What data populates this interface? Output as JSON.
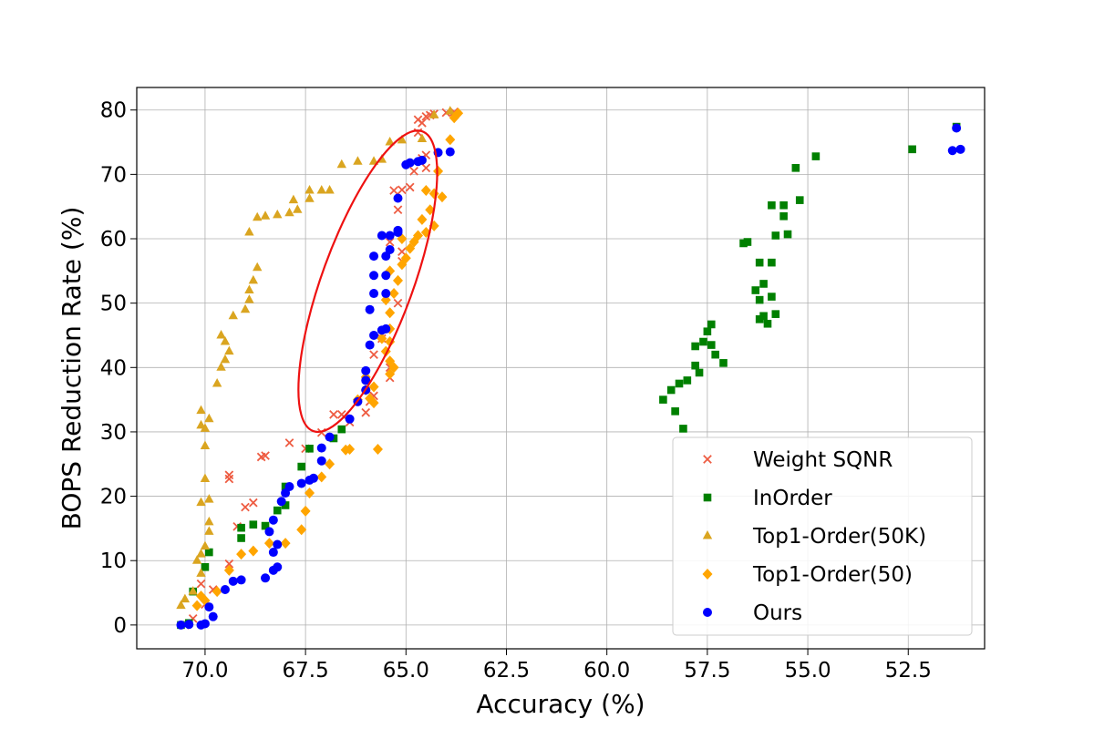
{
  "chart_data": {
    "type": "scatter",
    "title": "",
    "xlabel": "Accuracy (%)",
    "ylabel": "BOPS Reduction Rate (%)",
    "xlim": [
      71.7,
      50.6
    ],
    "ylim": [
      -3.7,
      83.5
    ],
    "x_inverted": true,
    "grid": true,
    "legend_position": "lower-right",
    "xticks": [
      70.0,
      67.5,
      65.0,
      62.5,
      60.0,
      57.5,
      55.0,
      52.5
    ],
    "xtick_labels": [
      "70.0",
      "67.5",
      "65.0",
      "62.5",
      "60.0",
      "57.5",
      "55.0",
      "52.5"
    ],
    "yticks": [
      0,
      10,
      20,
      30,
      40,
      50,
      60,
      70,
      80
    ],
    "ytick_labels": [
      "0",
      "10",
      "20",
      "30",
      "40",
      "50",
      "60",
      "70",
      "80"
    ],
    "annotation": {
      "type": "ellipse",
      "center": [
        65.95,
        53.4
      ],
      "color": "#ee1111"
    },
    "series": [
      {
        "name": "Weight SQNR",
        "marker": "x",
        "color": "#ee5c42",
        "points": [
          [
            70.5,
            0.0
          ],
          [
            70.3,
            1.0
          ],
          [
            70.0,
            3.2
          ],
          [
            70.1,
            6.4
          ],
          [
            69.8,
            5.5
          ],
          [
            69.4,
            9.5
          ],
          [
            69.2,
            15.3
          ],
          [
            68.8,
            19.0
          ],
          [
            69.0,
            18.3
          ],
          [
            69.4,
            22.7
          ],
          [
            69.4,
            23.3
          ],
          [
            68.6,
            26.1
          ],
          [
            68.5,
            26.3
          ],
          [
            67.9,
            28.3
          ],
          [
            67.5,
            27.4
          ],
          [
            67.1,
            29.9
          ],
          [
            66.8,
            32.7
          ],
          [
            66.6,
            32.7
          ],
          [
            66.4,
            31.5
          ],
          [
            66.0,
            33.0
          ],
          [
            65.8,
            35.6
          ],
          [
            65.9,
            34.7
          ],
          [
            65.8,
            42.0
          ],
          [
            65.6,
            44.5
          ],
          [
            65.4,
            38.4
          ],
          [
            65.4,
            40.0
          ],
          [
            65.2,
            50.0
          ],
          [
            65.4,
            59.5
          ],
          [
            65.1,
            56.5
          ],
          [
            65.1,
            58.0
          ],
          [
            65.2,
            64.5
          ],
          [
            65.3,
            67.5
          ],
          [
            65.1,
            67.6
          ],
          [
            64.9,
            68.0
          ],
          [
            64.8,
            70.5
          ],
          [
            64.5,
            71.0
          ],
          [
            64.6,
            72.5
          ],
          [
            64.5,
            73.0
          ],
          [
            64.7,
            76.5
          ],
          [
            64.6,
            78.0
          ],
          [
            64.7,
            78.5
          ],
          [
            64.5,
            79.0
          ],
          [
            64.4,
            79.2
          ],
          [
            64.3,
            79.4
          ],
          [
            64.0,
            79.6
          ],
          [
            63.8,
            79.7
          ]
        ]
      },
      {
        "name": "InOrder",
        "marker": "square",
        "color": "#008000",
        "points": [
          [
            70.6,
            0.0
          ],
          [
            70.4,
            0.3
          ],
          [
            70.3,
            5.2
          ],
          [
            70.0,
            9.0
          ],
          [
            69.9,
            11.3
          ],
          [
            69.1,
            13.5
          ],
          [
            69.1,
            15.1
          ],
          [
            68.8,
            15.6
          ],
          [
            68.5,
            15.4
          ],
          [
            68.2,
            17.8
          ],
          [
            68.0,
            18.6
          ],
          [
            68.0,
            21.5
          ],
          [
            67.6,
            24.6
          ],
          [
            67.4,
            27.4
          ],
          [
            66.8,
            29.0
          ],
          [
            66.6,
            30.4
          ],
          [
            58.6,
            35.0
          ],
          [
            58.4,
            36.5
          ],
          [
            58.2,
            37.5
          ],
          [
            58.0,
            38.0
          ],
          [
            57.8,
            40.3
          ],
          [
            57.7,
            39.2
          ],
          [
            57.8,
            43.3
          ],
          [
            57.6,
            44.0
          ],
          [
            57.5,
            45.6
          ],
          [
            57.4,
            46.7
          ],
          [
            57.4,
            43.5
          ],
          [
            57.3,
            42.0
          ],
          [
            57.1,
            40.7
          ],
          [
            58.3,
            33.2
          ],
          [
            58.1,
            30.5
          ],
          [
            56.6,
            59.3
          ],
          [
            56.5,
            59.5
          ],
          [
            56.3,
            52.0
          ],
          [
            56.2,
            50.5
          ],
          [
            56.1,
            48.0
          ],
          [
            56.2,
            47.5
          ],
          [
            56.0,
            46.8
          ],
          [
            55.8,
            48.3
          ],
          [
            55.9,
            51.0
          ],
          [
            56.1,
            53.0
          ],
          [
            56.2,
            56.3
          ],
          [
            55.9,
            56.3
          ],
          [
            55.8,
            60.5
          ],
          [
            55.5,
            60.7
          ],
          [
            55.6,
            63.5
          ],
          [
            55.6,
            65.2
          ],
          [
            55.9,
            65.2
          ],
          [
            55.2,
            66.0
          ],
          [
            55.3,
            71.0
          ],
          [
            54.8,
            72.8
          ],
          [
            52.4,
            73.9
          ],
          [
            51.3,
            77.4
          ]
        ]
      },
      {
        "name": "Top1-Order(50K)",
        "marker": "triangle",
        "color": "#daa520",
        "points": [
          [
            70.6,
            3.0
          ],
          [
            70.5,
            4.0
          ],
          [
            70.3,
            5.2
          ],
          [
            70.1,
            8.0
          ],
          [
            70.2,
            10.0
          ],
          [
            70.1,
            11.0
          ],
          [
            70.0,
            12.2
          ],
          [
            69.9,
            14.5
          ],
          [
            69.9,
            16.0
          ],
          [
            70.1,
            19.0
          ],
          [
            69.9,
            19.5
          ],
          [
            70.0,
            22.7
          ],
          [
            70.0,
            27.8
          ],
          [
            70.0,
            30.5
          ],
          [
            70.1,
            31.0
          ],
          [
            69.9,
            32.0
          ],
          [
            70.1,
            33.3
          ],
          [
            69.7,
            37.5
          ],
          [
            69.6,
            40.0
          ],
          [
            69.5,
            41.2
          ],
          [
            69.4,
            42.5
          ],
          [
            69.6,
            45.0
          ],
          [
            69.5,
            44.0
          ],
          [
            69.3,
            48.0
          ],
          [
            69.0,
            49.0
          ],
          [
            68.9,
            50.5
          ],
          [
            68.9,
            52.0
          ],
          [
            68.8,
            53.5
          ],
          [
            68.7,
            55.5
          ],
          [
            68.9,
            61.0
          ],
          [
            68.7,
            63.3
          ],
          [
            68.5,
            63.5
          ],
          [
            68.2,
            63.7
          ],
          [
            67.9,
            64.0
          ],
          [
            67.7,
            64.5
          ],
          [
            67.8,
            66.0
          ],
          [
            67.4,
            66.2
          ],
          [
            67.4,
            67.5
          ],
          [
            67.1,
            67.5
          ],
          [
            66.9,
            67.5
          ],
          [
            66.6,
            71.5
          ],
          [
            66.2,
            72.0
          ],
          [
            65.8,
            72.0
          ],
          [
            65.6,
            72.3
          ],
          [
            65.4,
            75.0
          ],
          [
            65.1,
            75.3
          ],
          [
            64.6,
            75.5
          ],
          [
            64.3,
            79.2
          ],
          [
            63.9,
            79.8
          ]
        ]
      },
      {
        "name": "Top1-Order(50)",
        "marker": "diamond",
        "color": "#ffa500",
        "points": [
          [
            70.2,
            3.0
          ],
          [
            70.1,
            4.5
          ],
          [
            70.0,
            3.8
          ],
          [
            69.7,
            5.2
          ],
          [
            69.4,
            8.5
          ],
          [
            69.1,
            11.0
          ],
          [
            68.8,
            11.5
          ],
          [
            68.4,
            12.7
          ],
          [
            68.0,
            12.7
          ],
          [
            67.6,
            14.8
          ],
          [
            67.5,
            17.7
          ],
          [
            67.4,
            20.5
          ],
          [
            67.1,
            23.0
          ],
          [
            66.9,
            25.0
          ],
          [
            66.5,
            27.2
          ],
          [
            66.4,
            27.3
          ],
          [
            65.7,
            27.3
          ],
          [
            65.8,
            34.5
          ],
          [
            65.9,
            35.2
          ],
          [
            66.2,
            35.0
          ],
          [
            66.0,
            36.5
          ],
          [
            66.0,
            38.5
          ],
          [
            65.8,
            37.0
          ],
          [
            65.4,
            39.0
          ],
          [
            65.3,
            40.0
          ],
          [
            65.4,
            41.0
          ],
          [
            65.5,
            42.5
          ],
          [
            65.4,
            44.0
          ],
          [
            65.6,
            44.5
          ],
          [
            65.4,
            46.0
          ],
          [
            65.4,
            48.5
          ],
          [
            65.5,
            50.5
          ],
          [
            65.3,
            51.5
          ],
          [
            65.2,
            53.5
          ],
          [
            65.4,
            55.0
          ],
          [
            65.1,
            56.0
          ],
          [
            65.0,
            57.0
          ],
          [
            64.9,
            58.5
          ],
          [
            64.8,
            59.5
          ],
          [
            65.1,
            60.0
          ],
          [
            64.7,
            60.5
          ],
          [
            64.5,
            61.0
          ],
          [
            64.3,
            62.0
          ],
          [
            64.6,
            63.0
          ],
          [
            64.4,
            64.5
          ],
          [
            64.1,
            66.5
          ],
          [
            64.3,
            67.0
          ],
          [
            64.5,
            67.5
          ],
          [
            64.2,
            70.5
          ],
          [
            63.9,
            75.4
          ],
          [
            63.8,
            78.8
          ],
          [
            63.7,
            79.5
          ]
        ]
      },
      {
        "name": "Ours",
        "marker": "circle",
        "color": "#0000ff",
        "points": [
          [
            70.6,
            0.0
          ],
          [
            70.4,
            0.1
          ],
          [
            70.1,
            0.0
          ],
          [
            70.0,
            0.2
          ],
          [
            69.8,
            1.3
          ],
          [
            69.9,
            2.8
          ],
          [
            69.5,
            5.5
          ],
          [
            69.3,
            6.8
          ],
          [
            69.1,
            7.0
          ],
          [
            68.5,
            7.3
          ],
          [
            68.3,
            8.5
          ],
          [
            68.2,
            9.0
          ],
          [
            68.3,
            11.3
          ],
          [
            68.2,
            12.5
          ],
          [
            68.4,
            14.5
          ],
          [
            68.3,
            16.3
          ],
          [
            68.1,
            19.2
          ],
          [
            68.0,
            20.5
          ],
          [
            67.9,
            21.5
          ],
          [
            67.6,
            22.0
          ],
          [
            67.4,
            22.5
          ],
          [
            67.3,
            22.8
          ],
          [
            67.1,
            25.5
          ],
          [
            67.1,
            27.5
          ],
          [
            66.9,
            29.2
          ],
          [
            66.4,
            32.0
          ],
          [
            66.2,
            34.7
          ],
          [
            66.0,
            36.5
          ],
          [
            66.0,
            38.0
          ],
          [
            66.0,
            39.5
          ],
          [
            65.9,
            43.5
          ],
          [
            65.8,
            45.0
          ],
          [
            65.6,
            45.8
          ],
          [
            65.5,
            46.0
          ],
          [
            65.9,
            49.0
          ],
          [
            65.8,
            51.5
          ],
          [
            65.5,
            51.5
          ],
          [
            65.8,
            54.3
          ],
          [
            65.5,
            54.3
          ],
          [
            65.8,
            57.3
          ],
          [
            65.5,
            57.3
          ],
          [
            65.4,
            58.3
          ],
          [
            65.6,
            60.5
          ],
          [
            65.4,
            60.5
          ],
          [
            65.2,
            61.0
          ],
          [
            65.2,
            61.3
          ],
          [
            65.2,
            66.3
          ],
          [
            65.0,
            71.5
          ],
          [
            64.9,
            71.8
          ],
          [
            64.7,
            72.0
          ],
          [
            64.6,
            72.2
          ],
          [
            63.9,
            73.5
          ],
          [
            64.2,
            73.4
          ],
          [
            51.4,
            73.7
          ],
          [
            51.2,
            73.9
          ],
          [
            51.3,
            77.2
          ]
        ]
      }
    ]
  }
}
